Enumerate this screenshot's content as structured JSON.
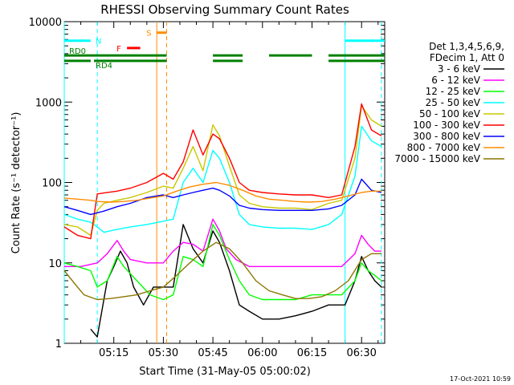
{
  "chart_data": {
    "type": "line",
    "title": "RHESSI Observing Summary Count Rates",
    "xlabel": "Start Time (31-May-05 05:00:02)",
    "ylabel": "Count Rate (s⁻¹ detector⁻¹)",
    "yscale": "log",
    "ylim": [
      1,
      10000
    ],
    "xlim_minutes": [
      0,
      97
    ],
    "y_ticks": [
      "1",
      "10",
      "100",
      "1000",
      "10000"
    ],
    "x_ticks": [
      {
        "m": 15,
        "label": "05:15"
      },
      {
        "m": 30,
        "label": "05:30"
      },
      {
        "m": 45,
        "label": "05:45"
      },
      {
        "m": 60,
        "label": "06:00"
      },
      {
        "m": 75,
        "label": "06:15"
      },
      {
        "m": 90,
        "label": "06:30"
      }
    ],
    "legend_header": [
      "Det 1,3,4,5,6,9,",
      "FDecim 1, Att 0"
    ],
    "series": [
      {
        "name": "3 - 6 keV",
        "color": "#000000",
        "points": [
          [
            8,
            1.5
          ],
          [
            10,
            1.2
          ],
          [
            13,
            6
          ],
          [
            15,
            9
          ],
          [
            17,
            14
          ],
          [
            19,
            10
          ],
          [
            21,
            5
          ],
          [
            24,
            3
          ],
          [
            27,
            5
          ],
          [
            30,
            5
          ],
          [
            33,
            5
          ],
          [
            36,
            30
          ],
          [
            39,
            15
          ],
          [
            42,
            10
          ],
          [
            45,
            25
          ],
          [
            47,
            18
          ],
          [
            50,
            8
          ],
          [
            53,
            3
          ],
          [
            56,
            2.5
          ],
          [
            60,
            2
          ],
          [
            65,
            2
          ],
          [
            70,
            2.2
          ],
          [
            75,
            2.5
          ],
          [
            80,
            3
          ],
          [
            85,
            3
          ],
          [
            88,
            6
          ],
          [
            90,
            12
          ],
          [
            92,
            8
          ],
          [
            94,
            6
          ],
          [
            96,
            5
          ]
        ]
      },
      {
        "name": "6 - 12 keV",
        "color": "#ff00ff",
        "points": [
          [
            0,
            9
          ],
          [
            5,
            9
          ],
          [
            10,
            10
          ],
          [
            13,
            13
          ],
          [
            16,
            19
          ],
          [
            18,
            14
          ],
          [
            20,
            11
          ],
          [
            25,
            10
          ],
          [
            30,
            10
          ],
          [
            33,
            14
          ],
          [
            36,
            18
          ],
          [
            39,
            17
          ],
          [
            42,
            14
          ],
          [
            45,
            35
          ],
          [
            47,
            25
          ],
          [
            49,
            15
          ],
          [
            52,
            11
          ],
          [
            56,
            9
          ],
          [
            60,
            9
          ],
          [
            65,
            9
          ],
          [
            70,
            9
          ],
          [
            75,
            9
          ],
          [
            80,
            9
          ],
          [
            84,
            9
          ],
          [
            88,
            13
          ],
          [
            90,
            22
          ],
          [
            92,
            17
          ],
          [
            94,
            14
          ],
          [
            96,
            14
          ]
        ]
      },
      {
        "name": "12 - 25 keV",
        "color": "#00ff00",
        "points": [
          [
            0,
            10
          ],
          [
            4,
            9
          ],
          [
            8,
            8
          ],
          [
            10,
            5
          ],
          [
            13,
            6
          ],
          [
            16,
            12
          ],
          [
            18,
            9
          ],
          [
            22,
            6
          ],
          [
            26,
            4
          ],
          [
            30,
            3.5
          ],
          [
            33,
            4
          ],
          [
            36,
            12
          ],
          [
            39,
            11
          ],
          [
            42,
            9
          ],
          [
            45,
            30
          ],
          [
            47,
            22
          ],
          [
            50,
            11
          ],
          [
            53,
            6
          ],
          [
            56,
            4
          ],
          [
            60,
            3.5
          ],
          [
            65,
            3.5
          ],
          [
            70,
            3.5
          ],
          [
            75,
            4
          ],
          [
            80,
            4
          ],
          [
            84,
            4
          ],
          [
            88,
            6
          ],
          [
            90,
            10
          ],
          [
            92,
            8
          ],
          [
            94,
            7
          ],
          [
            96,
            6
          ]
        ]
      },
      {
        "name": "25 - 50 keV",
        "color": "#00ffff",
        "points": [
          [
            0,
            40
          ],
          [
            4,
            35
          ],
          [
            8,
            32
          ],
          [
            10,
            28
          ],
          [
            12,
            24
          ],
          [
            16,
            26
          ],
          [
            20,
            28
          ],
          [
            25,
            30
          ],
          [
            30,
            33
          ],
          [
            33,
            35
          ],
          [
            36,
            100
          ],
          [
            39,
            150
          ],
          [
            42,
            100
          ],
          [
            45,
            250
          ],
          [
            47,
            200
          ],
          [
            50,
            100
          ],
          [
            53,
            40
          ],
          [
            56,
            30
          ],
          [
            60,
            28
          ],
          [
            65,
            27
          ],
          [
            70,
            27
          ],
          [
            75,
            26
          ],
          [
            80,
            30
          ],
          [
            84,
            40
          ],
          [
            88,
            120
          ],
          [
            90,
            500
          ],
          [
            93,
            330
          ],
          [
            96,
            280
          ]
        ]
      },
      {
        "name": "50 - 100 keV",
        "color": "#c8c800",
        "points": [
          [
            0,
            30
          ],
          [
            4,
            28
          ],
          [
            8,
            22
          ],
          [
            10,
            45
          ],
          [
            12,
            55
          ],
          [
            16,
            60
          ],
          [
            20,
            65
          ],
          [
            25,
            75
          ],
          [
            30,
            90
          ],
          [
            33,
            85
          ],
          [
            36,
            150
          ],
          [
            39,
            280
          ],
          [
            42,
            140
          ],
          [
            45,
            520
          ],
          [
            47,
            380
          ],
          [
            50,
            160
          ],
          [
            53,
            70
          ],
          [
            56,
            55
          ],
          [
            60,
            50
          ],
          [
            65,
            48
          ],
          [
            70,
            48
          ],
          [
            75,
            46
          ],
          [
            80,
            55
          ],
          [
            84,
            60
          ],
          [
            88,
            200
          ],
          [
            90,
            900
          ],
          [
            93,
            600
          ],
          [
            96,
            500
          ]
        ]
      },
      {
        "name": "100 - 300 keV",
        "color": "#ff0000",
        "points": [
          [
            0,
            28
          ],
          [
            4,
            22
          ],
          [
            8,
            20
          ],
          [
            10,
            72
          ],
          [
            12,
            74
          ],
          [
            16,
            78
          ],
          [
            20,
            85
          ],
          [
            25,
            100
          ],
          [
            30,
            130
          ],
          [
            33,
            110
          ],
          [
            36,
            180
          ],
          [
            39,
            450
          ],
          [
            42,
            220
          ],
          [
            45,
            400
          ],
          [
            47,
            350
          ],
          [
            50,
            200
          ],
          [
            53,
            100
          ],
          [
            56,
            80
          ],
          [
            60,
            75
          ],
          [
            65,
            72
          ],
          [
            70,
            70
          ],
          [
            75,
            70
          ],
          [
            80,
            65
          ],
          [
            84,
            70
          ],
          [
            88,
            280
          ],
          [
            90,
            950
          ],
          [
            93,
            450
          ],
          [
            96,
            380
          ]
        ]
      },
      {
        "name": "300 - 800 keV",
        "color": "#0000ff",
        "points": [
          [
            0,
            50
          ],
          [
            4,
            45
          ],
          [
            8,
            40
          ],
          [
            10,
            42
          ],
          [
            12,
            44
          ],
          [
            16,
            50
          ],
          [
            20,
            55
          ],
          [
            25,
            65
          ],
          [
            30,
            70
          ],
          [
            33,
            65
          ],
          [
            36,
            70
          ],
          [
            39,
            75
          ],
          [
            42,
            80
          ],
          [
            45,
            85
          ],
          [
            47,
            80
          ],
          [
            50,
            68
          ],
          [
            53,
            52
          ],
          [
            56,
            48
          ],
          [
            60,
            46
          ],
          [
            65,
            45
          ],
          [
            70,
            45
          ],
          [
            75,
            45
          ],
          [
            80,
            47
          ],
          [
            84,
            52
          ],
          [
            88,
            70
          ],
          [
            90,
            110
          ],
          [
            93,
            80
          ],
          [
            96,
            75
          ]
        ]
      },
      {
        "name": "800 - 7000 keV",
        "color": "#ff8c00",
        "points": [
          [
            0,
            64
          ],
          [
            4,
            62
          ],
          [
            8,
            60
          ],
          [
            10,
            58
          ],
          [
            14,
            57
          ],
          [
            18,
            58
          ],
          [
            22,
            60
          ],
          [
            26,
            64
          ],
          [
            30,
            68
          ],
          [
            34,
            78
          ],
          [
            38,
            88
          ],
          [
            42,
            95
          ],
          [
            46,
            100
          ],
          [
            50,
            92
          ],
          [
            54,
            80
          ],
          [
            58,
            68
          ],
          [
            62,
            62
          ],
          [
            66,
            60
          ],
          [
            70,
            58
          ],
          [
            74,
            57
          ],
          [
            78,
            58
          ],
          [
            82,
            62
          ],
          [
            86,
            68
          ],
          [
            90,
            75
          ],
          [
            93,
            78
          ],
          [
            96,
            78
          ]
        ]
      },
      {
        "name": "7000 - 15000 keV",
        "color": "#8b7500",
        "points": [
          [
            0,
            8
          ],
          [
            4,
            5
          ],
          [
            6,
            4
          ],
          [
            10,
            3.5
          ],
          [
            14,
            3.6
          ],
          [
            18,
            3.8
          ],
          [
            22,
            4
          ],
          [
            26,
            4.5
          ],
          [
            30,
            5
          ],
          [
            34,
            7
          ],
          [
            38,
            10
          ],
          [
            42,
            14
          ],
          [
            46,
            18
          ],
          [
            50,
            15
          ],
          [
            54,
            10
          ],
          [
            58,
            6
          ],
          [
            62,
            4.5
          ],
          [
            66,
            4
          ],
          [
            70,
            3.6
          ],
          [
            74,
            3.6
          ],
          [
            78,
            3.8
          ],
          [
            82,
            4.5
          ],
          [
            86,
            6
          ],
          [
            90,
            11
          ],
          [
            93,
            13
          ],
          [
            96,
            13
          ]
        ]
      }
    ],
    "state_bars": [
      {
        "label": "N",
        "color": "#00ffff",
        "y": 5800,
        "segments": [
          [
            0,
            8
          ],
          [
            85,
            97
          ]
        ]
      },
      {
        "label": "F",
        "color": "#ff0000",
        "y": 4700,
        "segments": [
          [
            19,
            23
          ]
        ]
      },
      {
        "label": "S",
        "color": "#ff8c00",
        "y": 7300,
        "segments": [
          [
            28,
            31
          ]
        ]
      },
      {
        "label": "RD0",
        "color": "#008000",
        "y": 3800,
        "segments": [
          [
            0,
            31
          ],
          [
            45,
            54
          ],
          [
            62,
            75
          ],
          [
            80,
            97
          ]
        ]
      },
      {
        "label": "RD4",
        "color": "#008000",
        "y": 3250,
        "segments": [
          [
            0,
            8
          ],
          [
            9,
            31
          ],
          [
            45,
            54
          ],
          [
            80,
            97
          ]
        ]
      }
    ],
    "vertical_markers": [
      {
        "m": 0,
        "color": "#00ffff",
        "style": "solid"
      },
      {
        "m": 10,
        "color": "#00ffff",
        "style": "dashed"
      },
      {
        "m": 28,
        "color": "#ff8c00",
        "style": "solid"
      },
      {
        "m": 31,
        "color": "#ff8c00",
        "style": "dashed"
      },
      {
        "m": 85,
        "color": "#00ffff",
        "style": "solid"
      },
      {
        "m": 96,
        "color": "#00ffff",
        "style": "dashed"
      }
    ]
  },
  "footer": {
    "timestamp": "17-Oct-2021 10:59"
  },
  "colors": {
    "frame": "#000000",
    "background": "#ffffff"
  }
}
